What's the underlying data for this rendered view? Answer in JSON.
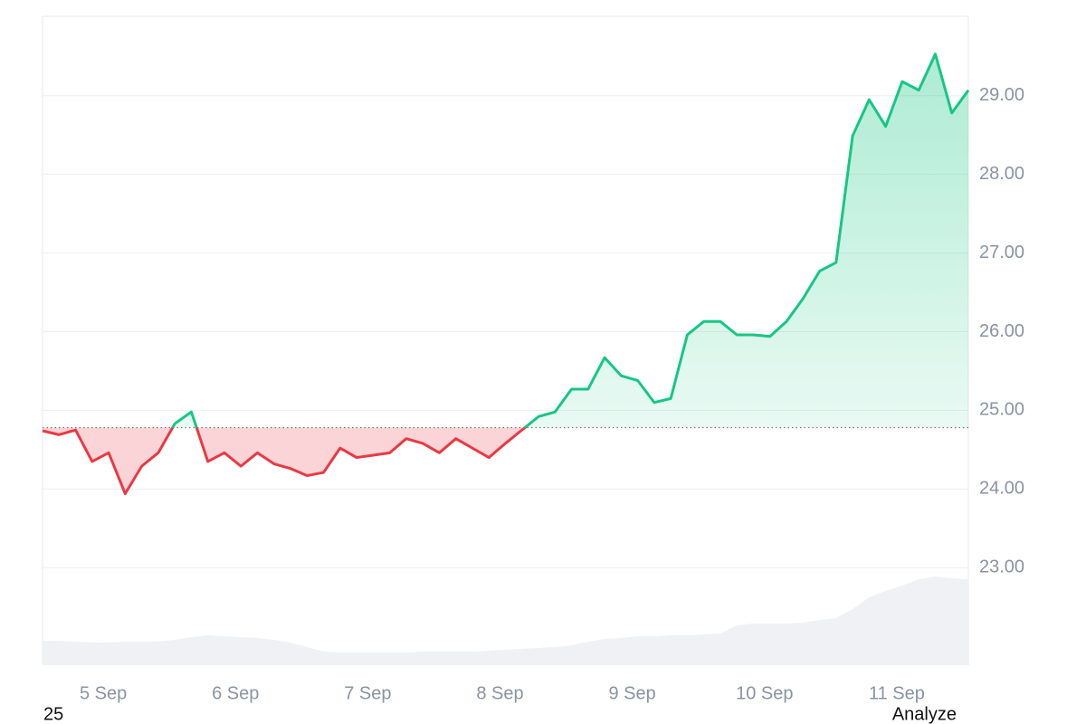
{
  "chart_data": {
    "type": "line",
    "categories": [
      null,
      null,
      null,
      null,
      "5 Sep",
      null,
      null,
      null,
      null,
      null,
      null,
      null,
      "6 Sep",
      null,
      null,
      null,
      null,
      null,
      null,
      null,
      "7 Sep",
      null,
      null,
      null,
      null,
      null,
      null,
      null,
      "8 Sep",
      null,
      null,
      null,
      null,
      null,
      null,
      null,
      "9 Sep",
      null,
      null,
      null,
      null,
      null,
      null,
      null,
      "10 Sep",
      null,
      null,
      null,
      null,
      null,
      null,
      null,
      "11 Sep",
      null,
      null,
      null,
      null
    ],
    "series": [
      {
        "name": "Price",
        "color": "#16c784",
        "color_below": "#ea3943",
        "values": [
          24.74,
          24.69,
          24.75,
          24.35,
          24.46,
          23.94,
          24.29,
          24.46,
          24.83,
          24.98,
          24.35,
          24.46,
          24.29,
          24.46,
          24.32,
          24.26,
          24.17,
          24.21,
          24.52,
          24.4,
          24.43,
          24.46,
          24.64,
          24.58,
          24.46,
          24.64,
          24.52,
          24.4,
          24.58,
          24.75,
          24.92,
          24.98,
          25.27,
          25.27,
          25.67,
          25.44,
          25.38,
          25.1,
          25.15,
          25.96,
          26.13,
          26.13,
          25.96,
          25.96,
          25.94,
          26.13,
          26.42,
          26.77,
          26.88,
          28.49,
          28.95,
          28.61,
          29.18,
          29.07,
          29.53,
          28.78,
          29.07
        ]
      },
      {
        "name": "Volume",
        "color": "#eff1f5",
        "axis": "y2",
        "values": [
          27,
          27,
          26,
          25,
          25,
          26,
          26,
          26,
          28,
          31,
          33,
          32,
          31,
          30,
          28,
          25,
          20,
          15,
          14,
          14,
          14,
          14,
          14,
          15,
          15,
          15,
          15,
          16,
          17,
          18,
          19,
          20,
          22,
          26,
          29,
          30,
          32,
          32,
          33,
          33,
          34,
          35,
          44,
          46,
          46,
          46,
          47,
          50,
          52,
          62,
          75,
          82,
          88,
          95,
          98,
          96,
          95
        ]
      }
    ],
    "baseline": 24.78,
    "ylim": [
      21.76,
      30.01
    ],
    "yticks": [
      {
        "value": 23,
        "label": "23.00"
      },
      {
        "value": 24,
        "label": "24.00"
      },
      {
        "value": 25,
        "label": "25.00"
      },
      {
        "value": 26,
        "label": "26.00"
      },
      {
        "value": 27,
        "label": "27.00"
      },
      {
        "value": 28,
        "label": "28.00"
      },
      {
        "value": 29,
        "label": "29.00"
      }
    ],
    "y2lim": [
      0,
      100
    ],
    "grid": true
  },
  "footer": {
    "left": "25",
    "right": "Analyze"
  }
}
